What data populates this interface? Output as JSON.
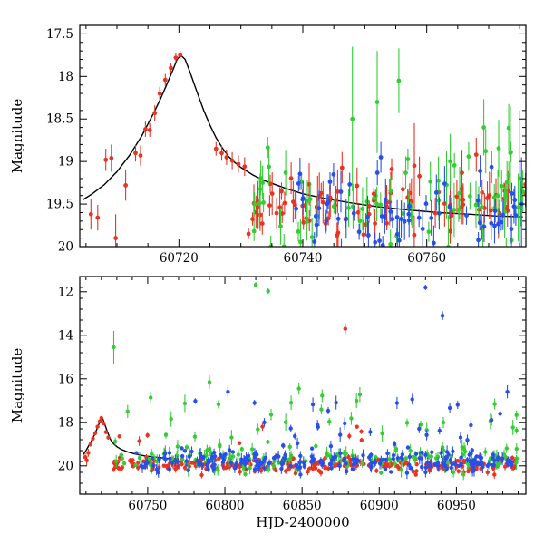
{
  "figure": {
    "background": "#ffffff",
    "axis_color": "#000000",
    "xlabel": "HJD-2400000",
    "ylabel": "Magnitude",
    "series_colors": {
      "red": "#e93323",
      "green": "#35cc35",
      "blue": "#2750e8"
    },
    "model_curve_color": "#000000"
  },
  "render": {
    "seed": 20250412
  },
  "chart_data": [
    {
      "id": "top",
      "type": "scatter",
      "title": "",
      "xlabel": "",
      "ylabel": "Magnitude",
      "xlim": [
        60704,
        60776
      ],
      "ylim": [
        17.4,
        20.0
      ],
      "y_inverted": true,
      "grid": false,
      "xticks": [
        60720,
        60740,
        60760
      ],
      "yticks": [
        17.5,
        18,
        18.5,
        19,
        19.5,
        20
      ],
      "x_minor_step": 5,
      "y_minor_step": 0.1,
      "model_curve": [
        [
          60704.5,
          19.45
        ],
        [
          60706,
          19.38
        ],
        [
          60708,
          19.27
        ],
        [
          60710,
          19.12
        ],
        [
          60712,
          18.93
        ],
        [
          60714,
          18.7
        ],
        [
          60716,
          18.42
        ],
        [
          60717,
          18.27
        ],
        [
          60718,
          18.1
        ],
        [
          60719,
          17.93
        ],
        [
          60719.7,
          17.8
        ],
        [
          60720.3,
          17.75
        ],
        [
          60721,
          17.8
        ],
        [
          60721.8,
          17.95
        ],
        [
          60722.8,
          18.16
        ],
        [
          60724,
          18.4
        ],
        [
          60725,
          18.57
        ],
        [
          60726,
          18.72
        ],
        [
          60727,
          18.84
        ],
        [
          60728,
          18.94
        ],
        [
          60729,
          19.01
        ],
        [
          60730,
          19.07
        ],
        [
          60732,
          19.16
        ],
        [
          60734,
          19.23
        ],
        [
          60737,
          19.31
        ],
        [
          60740,
          19.38
        ],
        [
          60744,
          19.44
        ],
        [
          60748,
          19.49
        ],
        [
          60752,
          19.53
        ],
        [
          60757,
          19.57
        ],
        [
          60762,
          19.6
        ],
        [
          60767,
          19.62
        ],
        [
          60771,
          19.64
        ],
        [
          60775.5,
          19.65
        ]
      ],
      "series": [
        {
          "name": "red",
          "color": "#e93323",
          "marker": "circle",
          "points": [
            [
              60705.8,
              19.62,
              0.18
            ],
            [
              60706.9,
              19.66,
              0.15
            ],
            [
              60708.2,
              18.98,
              0.13
            ],
            [
              60709.1,
              18.96,
              0.16
            ],
            [
              60709.8,
              19.9,
              0.28
            ],
            [
              60711.4,
              19.28,
              0.18
            ],
            [
              60713.0,
              18.9,
              0.1
            ],
            [
              60713.8,
              18.93,
              0.12
            ],
            [
              60714.6,
              18.62,
              0.09
            ],
            [
              60715.3,
              18.63,
              0.08
            ],
            [
              60716.1,
              18.43,
              0.09
            ],
            [
              60716.9,
              18.2,
              0.08
            ],
            [
              60717.8,
              18.04,
              0.07
            ],
            [
              60718.7,
              17.9,
              0.06
            ],
            [
              60719.5,
              17.78,
              0.05
            ],
            [
              60720.2,
              17.75,
              0.05
            ],
            [
              60726.0,
              18.85,
              0.08
            ],
            [
              60726.9,
              18.9,
              0.09
            ],
            [
              60727.7,
              18.95,
              0.09
            ],
            [
              60728.6,
              18.99,
              0.1
            ],
            [
              60729.6,
              19.03,
              0.1
            ],
            [
              60730.6,
              19.06,
              0.11
            ],
            [
              60758.0,
              19.05,
              0.5
            ],
            [
              60768.0,
              18.92,
              0.2
            ]
          ],
          "clusters": [
            {
              "x0": 60731,
              "x1": 60776,
              "n": 95,
              "dist": "gauss",
              "mean": 19.52,
              "sigma": 0.17,
              "errLo": 0.06,
              "errHi": 0.28
            }
          ]
        },
        {
          "name": "green",
          "color": "#35cc35",
          "marker": "circle",
          "points": [
            [
              60733.5,
              19.25,
              0.2
            ],
            [
              60748.0,
              18.5,
              0.85
            ],
            [
              60752.0,
              18.3,
              0.6
            ],
            [
              60755.5,
              18.05,
              0.38
            ],
            [
              60773.5,
              18.9,
              0.55
            ],
            [
              60775.0,
              19.2,
              0.8
            ]
          ],
          "clusters": [
            {
              "x0": 60732,
              "x1": 60763,
              "n": 42,
              "dist": "gauss",
              "mean": 19.55,
              "sigma": 0.26,
              "errLo": 0.08,
              "errHi": 0.3
            },
            {
              "x0": 60763,
              "x1": 60776,
              "n": 32,
              "dist": "gauss",
              "mean": 19.35,
              "sigma": 0.33,
              "errLo": 0.1,
              "errHi": 0.4
            }
          ]
        },
        {
          "name": "blue",
          "color": "#2750e8",
          "marker": "circle",
          "points": [
            [
              60752.6,
              18.95,
              0.18
            ],
            [
              60775.3,
              19.5,
              0.55
            ]
          ],
          "clusters": [
            {
              "x0": 60737,
              "x1": 60776,
              "n": 68,
              "dist": "gauss",
              "mean": 19.6,
              "sigma": 0.22,
              "errLo": 0.06,
              "errHi": 0.25
            }
          ]
        }
      ]
    },
    {
      "id": "bottom",
      "type": "scatter",
      "title": "",
      "xlabel": "HJD-2400000",
      "ylabel": "Magnitude",
      "xlim": [
        60706,
        60995
      ],
      "ylim": [
        11.3,
        21.3
      ],
      "y_inverted": true,
      "grid": false,
      "xticks": [
        60750,
        60800,
        60850,
        60900,
        60950
      ],
      "yticks": [
        12,
        14,
        16,
        18,
        20
      ],
      "x_minor_step": 10,
      "y_minor_step": 0.5,
      "model_curve": [
        [
          60708,
          19.5
        ],
        [
          60710,
          19.3
        ],
        [
          60712,
          19.05
        ],
        [
          60714,
          18.8
        ],
        [
          60716,
          18.5
        ],
        [
          60718,
          18.15
        ],
        [
          60719.5,
          17.88
        ],
        [
          60720.3,
          17.8
        ],
        [
          60721,
          17.85
        ],
        [
          60722,
          18.05
        ],
        [
          60724,
          18.45
        ],
        [
          60726,
          18.8
        ],
        [
          60728,
          19.0
        ],
        [
          60730,
          19.12
        ],
        [
          60733,
          19.25
        ],
        [
          60737,
          19.36
        ],
        [
          60742,
          19.46
        ],
        [
          60748,
          19.54
        ],
        [
          60755,
          19.6
        ],
        [
          60762,
          19.65
        ],
        [
          60770,
          19.68
        ]
      ],
      "series": [
        {
          "name": "red",
          "color": "#e93323",
          "marker": "circle",
          "points": [
            [
              60709.5,
              19.6,
              0.2
            ],
            [
              60710.5,
              19.75,
              0.22
            ],
            [
              60711.5,
              19.4,
              0.18
            ],
            [
              60713,
              19.0,
              0.12
            ],
            [
              60714.5,
              18.75,
              0.1
            ],
            [
              60716,
              18.5,
              0.1
            ],
            [
              60717.5,
              18.2,
              0.08
            ],
            [
              60719,
              17.95,
              0.07
            ],
            [
              60720,
              17.8,
              0.06
            ],
            [
              60721.5,
              18.05,
              0.08
            ],
            [
              60723,
              18.45,
              0.1
            ],
            [
              60724.5,
              18.7,
              0.1
            ],
            [
              60878,
              13.7,
              0.25
            ]
          ],
          "clusters": [
            {
              "x0": 60726,
              "x1": 60990,
              "n": 270,
              "dist": "gauss",
              "mean": 19.95,
              "sigma": 0.16,
              "errLo": 0.05,
              "errHi": 0.18
            },
            {
              "x0": 60730,
              "x1": 60970,
              "n": 10,
              "dist": "uniform",
              "lo": 18.2,
              "hi": 19.3,
              "errLo": 0.08,
              "errHi": 0.25
            }
          ]
        },
        {
          "name": "green",
          "color": "#35cc35",
          "marker": "circle",
          "points": [
            [
              60728,
              14.55,
              0.75
            ],
            [
              60737,
              17.5,
              0.3
            ],
            [
              60790,
              16.15,
              0.3
            ],
            [
              60820,
              11.68,
              0.12
            ],
            [
              60828,
              11.97,
              0.13
            ],
            [
              60848,
              16.45,
              0.28
            ]
          ],
          "clusters": [
            {
              "x0": 60728,
              "x1": 60990,
              "n": 150,
              "dist": "gauss",
              "mean": 19.65,
              "sigma": 0.32,
              "errLo": 0.08,
              "errHi": 0.35
            },
            {
              "x0": 60740,
              "x1": 60990,
              "n": 26,
              "dist": "uniform",
              "lo": 16.7,
              "hi": 18.7,
              "errLo": 0.15,
              "errHi": 0.4
            }
          ]
        },
        {
          "name": "blue",
          "color": "#2750e8",
          "marker": "circle",
          "points": [
            [
              60802,
              16.6,
              0.25
            ],
            [
              60930,
              11.8,
              0.12
            ],
            [
              60941,
              13.1,
              0.2
            ],
            [
              60983,
              16.6,
              0.3
            ]
          ],
          "clusters": [
            {
              "x0": 60742,
              "x1": 60990,
              "n": 240,
              "dist": "gauss",
              "mean": 19.75,
              "sigma": 0.28,
              "errLo": 0.06,
              "errHi": 0.3
            },
            {
              "x0": 60780,
              "x1": 60990,
              "n": 24,
              "dist": "uniform",
              "lo": 16.9,
              "hi": 18.7,
              "errLo": 0.12,
              "errHi": 0.35
            }
          ]
        }
      ]
    }
  ]
}
